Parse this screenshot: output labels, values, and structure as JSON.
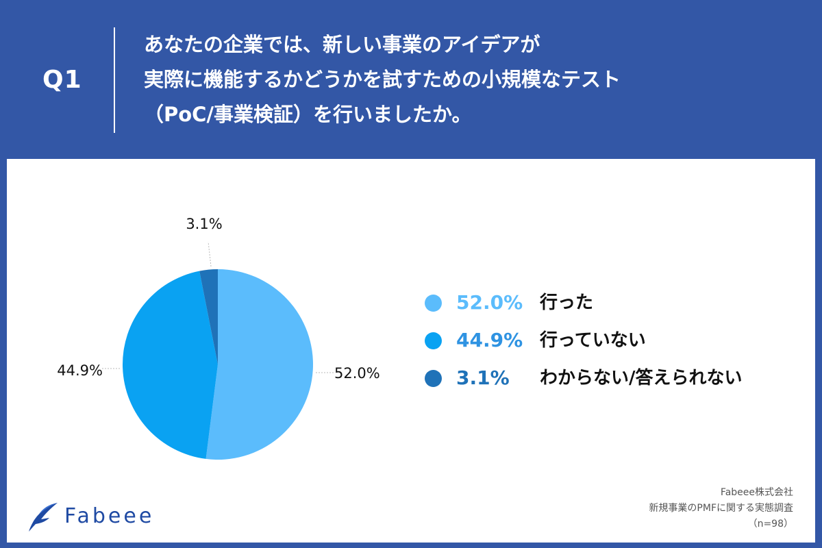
{
  "header": {
    "label": "Q1",
    "question_lines": [
      "あなたの企業では、新しい事業のアイデアが",
      "実際に機能するかどうかを試すための小規模なテスト",
      "（PoC/事業検証）を行いましたか。"
    ]
  },
  "chart_data": {
    "type": "pie",
    "title": "",
    "categories": [
      "行った",
      "行っていない",
      "わからない/答えられない"
    ],
    "values": [
      52.0,
      44.9,
      3.1
    ],
    "labels": [
      "52.0%",
      "44.9%",
      "3.1%"
    ],
    "colors": [
      "#5bbcfc",
      "#0aa2f2",
      "#1f72b8"
    ],
    "legend_value_colors": [
      "#5bbcfc",
      "#2f93e2",
      "#1f72b8"
    ],
    "legend_placement": "right"
  },
  "brand": {
    "name": "Fabeee"
  },
  "source": {
    "company": "Fabeee株式会社",
    "survey": "新規事業のPMFに関する実態調査",
    "sample": "（n=98）"
  }
}
